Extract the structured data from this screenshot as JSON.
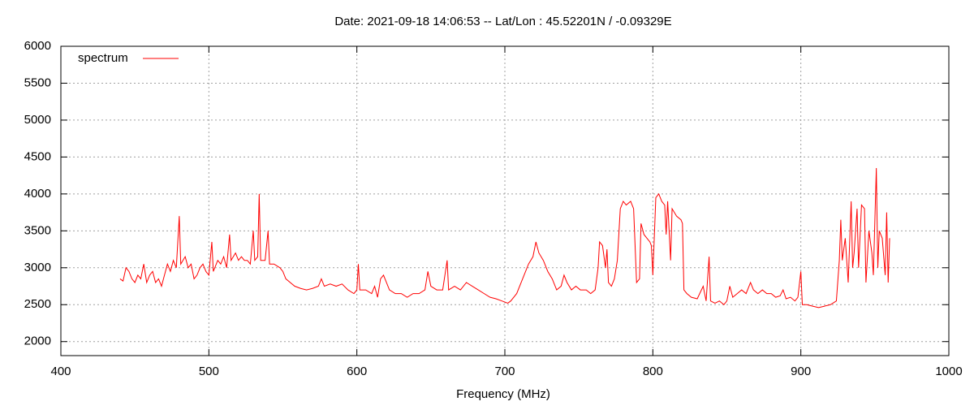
{
  "chart_data": {
    "type": "line",
    "title": "Date: 2021-09-18 14:06:53  --  Lat/Lon : 45.52201N / -0.09329E",
    "x_label": "Frequency (MHz)",
    "xlim": [
      400,
      1000
    ],
    "xticks": [
      400,
      500,
      600,
      700,
      800,
      900,
      1000
    ],
    "ylim": [
      1810,
      6000
    ],
    "yticks": [
      2000,
      2500,
      3000,
      3500,
      4000,
      4500,
      5000,
      5500,
      6000
    ],
    "grid": true,
    "legend": "top-left",
    "x": [
      440,
      442,
      444,
      446,
      448,
      450,
      452,
      454,
      456,
      458,
      460,
      462,
      464,
      466,
      468,
      470,
      472,
      474,
      476,
      478,
      480,
      481,
      484,
      486,
      488,
      490,
      492,
      494,
      496,
      498,
      500,
      502,
      503,
      506,
      508,
      510,
      512,
      514,
      515,
      518,
      520,
      522,
      524,
      526,
      528,
      530,
      531,
      533,
      534,
      535,
      538,
      540,
      541,
      544,
      548,
      550,
      552,
      555,
      558,
      562,
      566,
      570,
      574,
      576,
      578,
      582,
      586,
      590,
      594,
      598,
      600,
      601,
      602,
      606,
      610,
      612,
      614,
      616,
      618,
      620,
      622,
      626,
      630,
      634,
      638,
      642,
      646,
      648,
      650,
      654,
      658,
      661,
      662,
      666,
      670,
      674,
      678,
      682,
      686,
      690,
      694,
      698,
      702,
      704,
      708,
      712,
      716,
      719,
      721,
      723,
      726,
      729,
      732,
      735,
      738,
      740,
      742,
      745,
      748,
      751,
      755,
      758,
      761,
      763,
      764,
      766,
      768,
      769,
      770,
      772,
      774,
      776,
      778,
      780,
      782,
      785,
      787,
      789,
      791,
      792,
      794,
      796,
      798,
      799,
      800,
      802,
      804,
      806,
      808,
      809,
      810,
      812,
      813,
      816,
      819,
      820,
      821,
      823,
      826,
      830,
      834,
      836,
      838,
      839,
      842,
      845,
      848,
      850,
      852,
      854,
      857,
      860,
      863,
      866,
      868,
      871,
      874,
      877,
      880,
      883,
      886,
      888,
      890,
      893,
      896,
      898,
      900,
      901,
      904,
      908,
      912,
      916,
      920,
      924,
      926,
      927,
      928,
      930,
      932,
      934,
      935,
      936,
      938,
      939,
      941,
      943,
      944,
      946,
      948,
      949,
      951,
      952,
      953,
      955,
      957,
      958,
      959,
      960
    ],
    "series": [
      {
        "name": "spectrum",
        "color": "#ff0000",
        "values": [
          2850,
          2820,
          3000,
          2950,
          2850,
          2800,
          2900,
          2850,
          3050,
          2800,
          2900,
          2950,
          2800,
          2850,
          2750,
          2900,
          3050,
          2950,
          3100,
          3000,
          3700,
          3050,
          3150,
          3000,
          3050,
          2850,
          2900,
          3000,
          3050,
          2950,
          2900,
          3350,
          2950,
          3100,
          3050,
          3150,
          3000,
          3450,
          3100,
          3200,
          3100,
          3150,
          3100,
          3100,
          3050,
          3500,
          3100,
          3150,
          4000,
          3100,
          3100,
          3500,
          3050,
          3050,
          3000,
          2950,
          2850,
          2800,
          2750,
          2720,
          2700,
          2720,
          2750,
          2850,
          2750,
          2780,
          2750,
          2780,
          2700,
          2650,
          2700,
          3050,
          2700,
          2700,
          2650,
          2750,
          2600,
          2850,
          2900,
          2800,
          2700,
          2650,
          2650,
          2600,
          2650,
          2650,
          2700,
          2950,
          2750,
          2700,
          2700,
          3100,
          2700,
          2750,
          2700,
          2800,
          2750,
          2700,
          2650,
          2600,
          2580,
          2550,
          2520,
          2550,
          2650,
          2850,
          3050,
          3150,
          3350,
          3200,
          3100,
          2950,
          2850,
          2700,
          2750,
          2900,
          2800,
          2700,
          2750,
          2700,
          2700,
          2650,
          2700,
          3000,
          3350,
          3300,
          3000,
          3250,
          2800,
          2750,
          2850,
          3100,
          3800,
          3900,
          3850,
          3900,
          3800,
          2800,
          2850,
          3600,
          3450,
          3400,
          3350,
          3300,
          2900,
          3950,
          4000,
          3900,
          3850,
          3450,
          3900,
          3100,
          3800,
          3700,
          3650,
          3600,
          2700,
          2650,
          2600,
          2580,
          2750,
          2550,
          3150,
          2550,
          2520,
          2550,
          2500,
          2550,
          2750,
          2600,
          2650,
          2700,
          2650,
          2800,
          2700,
          2650,
          2700,
          2650,
          2650,
          2600,
          2620,
          2700,
          2580,
          2600,
          2550,
          2600,
          2950,
          2500,
          2500,
          2480,
          2460,
          2480,
          2500,
          2550,
          3100,
          3650,
          3100,
          3400,
          2800,
          3900,
          3000,
          3200,
          3800,
          3000,
          3850,
          3800,
          2800,
          3500,
          3200,
          2900,
          4350,
          3000,
          3500,
          3400,
          2900,
          3750,
          2800,
          3400
        ]
      }
    ]
  }
}
